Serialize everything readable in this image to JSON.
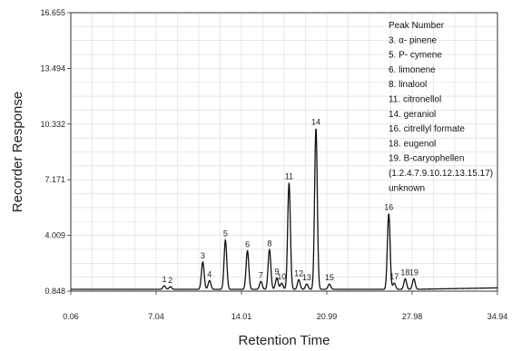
{
  "chart_data": {
    "type": "line",
    "xlabel": "Retention Time",
    "ylabel": "Recorder Response",
    "x_ticks": [
      "0.06",
      "7.04",
      "14.01",
      "20.99",
      "27.98",
      "34.94"
    ],
    "y_ticks": [
      "0.848",
      "4.009",
      "7.171",
      "10.332",
      "13.494",
      "16.655"
    ],
    "xlim": [
      0.06,
      34.94
    ],
    "ylim": [
      0.848,
      16.655
    ],
    "grid": true,
    "legend_position": "top-right",
    "baseline": 0.95,
    "peaks": [
      {
        "label": "1",
        "x": 7.7,
        "y": 1.15
      },
      {
        "label": "2",
        "x": 8.2,
        "y": 1.1
      },
      {
        "label": "3",
        "x": 10.85,
        "y": 2.5
      },
      {
        "label": "4",
        "x": 11.4,
        "y": 1.45
      },
      {
        "label": "5",
        "x": 12.7,
        "y": 3.75
      },
      {
        "label": "6",
        "x": 14.5,
        "y": 3.15
      },
      {
        "label": "7",
        "x": 15.6,
        "y": 1.4
      },
      {
        "label": "8",
        "x": 16.3,
        "y": 3.2
      },
      {
        "label": "9",
        "x": 16.9,
        "y": 1.6
      },
      {
        "label": "10",
        "x": 17.3,
        "y": 1.3
      },
      {
        "label": "11",
        "x": 17.9,
        "y": 7.0
      },
      {
        "label": "12",
        "x": 18.7,
        "y": 1.5
      },
      {
        "label": "13",
        "x": 19.35,
        "y": 1.25
      },
      {
        "label": "14",
        "x": 20.1,
        "y": 10.1
      },
      {
        "label": "15",
        "x": 21.2,
        "y": 1.25
      },
      {
        "label": "16",
        "x": 26.05,
        "y": 5.25
      },
      {
        "label": "17",
        "x": 26.5,
        "y": 1.3
      },
      {
        "label": "18",
        "x": 27.4,
        "y": 1.55
      },
      {
        "label": "19",
        "x": 28.1,
        "y": 1.55
      }
    ],
    "legend": [
      "Peak Number",
      "3. α- pinene",
      "5. P- cymene",
      "6. limonene",
      "8. linalool",
      "11. citronellol",
      "14. geraniol",
      "16. citrellyl formate",
      "18. eugenol",
      "19. B-caryophellen",
      "(1.2.4.7.9.10.12.13.15.17)",
      "unknown"
    ]
  }
}
